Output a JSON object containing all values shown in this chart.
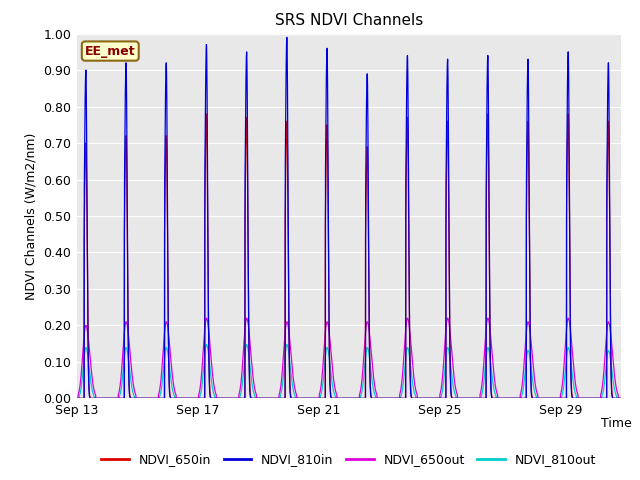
{
  "title": "SRS NDVI Channels",
  "xlabel": "Time",
  "ylabel": "NDVI Channels (W/m2/nm)",
  "ylim": [
    0.0,
    1.0
  ],
  "yticks": [
    0.0,
    0.1,
    0.2,
    0.3,
    0.4,
    0.5,
    0.6,
    0.7,
    0.8,
    0.9,
    1.0
  ],
  "xtick_labels": [
    "Sep 13",
    "Sep 17",
    "Sep 21",
    "Sep 25",
    "Sep 29"
  ],
  "bg_color": "#e8e8e8",
  "fig_color": "#ffffff",
  "line_colors": {
    "NDVI_650in": "#dd0000",
    "NDVI_810in": "#0000dd",
    "NDVI_650out": "#dd00dd",
    "NDVI_810out": "#00cccc"
  },
  "legend_label": "EE_met",
  "n_days": 18,
  "peak_period": 1.33,
  "peaks_810in": [
    0.9,
    0.92,
    0.92,
    0.97,
    0.95,
    0.99,
    0.96,
    0.89,
    0.94,
    0.93,
    0.94,
    0.93,
    0.95,
    0.92
  ],
  "peaks_650in": [
    0.7,
    0.72,
    0.72,
    0.78,
    0.77,
    0.76,
    0.75,
    0.69,
    0.77,
    0.76,
    0.78,
    0.76,
    0.78,
    0.76
  ],
  "peaks_650out": [
    0.2,
    0.21,
    0.21,
    0.22,
    0.22,
    0.21,
    0.21,
    0.21,
    0.22,
    0.22,
    0.22,
    0.21,
    0.22,
    0.21
  ],
  "peaks_810out": [
    0.17,
    0.17,
    0.17,
    0.18,
    0.18,
    0.18,
    0.17,
    0.17,
    0.17,
    0.17,
    0.17,
    0.16,
    0.17,
    0.16
  ]
}
